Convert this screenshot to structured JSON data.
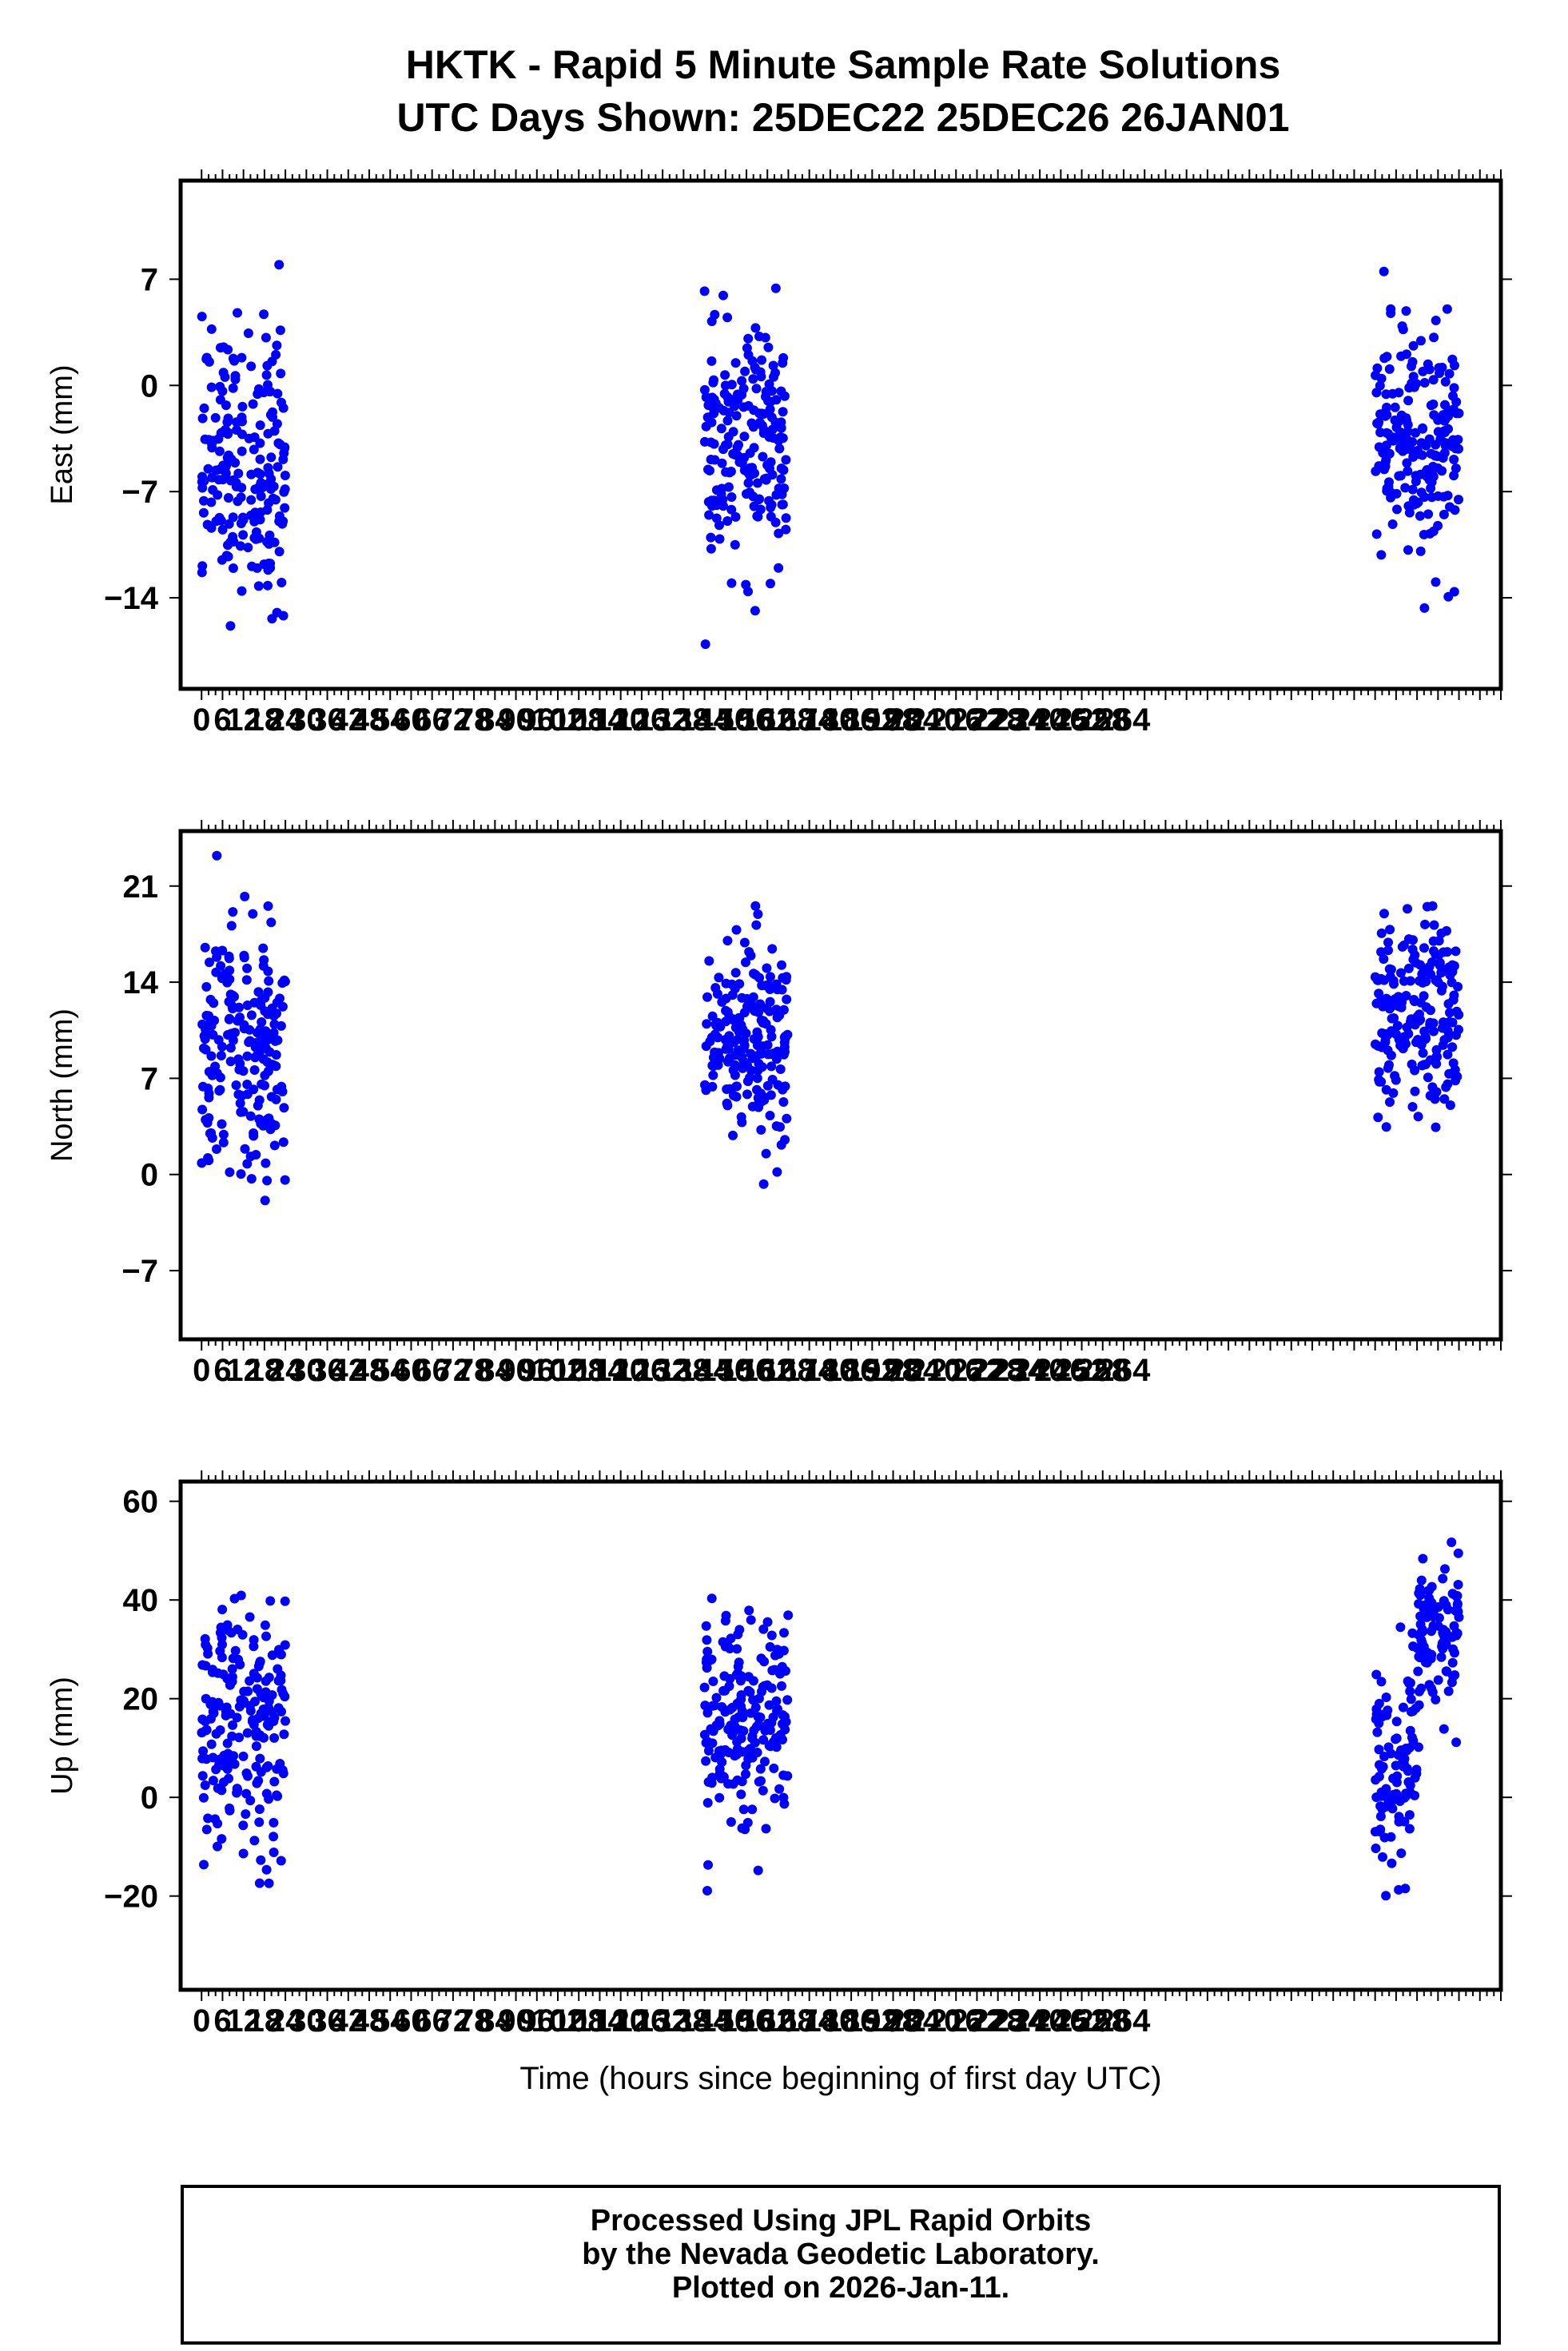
{
  "title": {
    "line1": "HKTK - Rapid 5 Minute Sample Rate Solutions",
    "line2": "UTC Days Shown:  25DEC22 25DEC26 26JAN01"
  },
  "footer": {
    "line1": "Processed Using JPL Rapid Orbits",
    "line2": "by the Nevada Geodetic Laboratory.",
    "line3": "Plotted on 2026-Jan-11."
  },
  "colors": {
    "points": "#0000ff",
    "axes": "#000000",
    "background": "#ffffff"
  },
  "chart_data": [
    {
      "type": "scatter",
      "title": "",
      "ylabel": "East (mm)",
      "xlabel": "",
      "xlim": [
        -6,
        372
      ],
      "ylim": [
        -20,
        13.5
      ],
      "yticks": [
        -14,
        -7,
        0,
        7
      ],
      "xticks": [
        0,
        6,
        12,
        18,
        24,
        30,
        36,
        42,
        48,
        54,
        60,
        66,
        72,
        78,
        84,
        90,
        96,
        102,
        108,
        114,
        120,
        126,
        132,
        138,
        144,
        150,
        156,
        162,
        168,
        174,
        180,
        186,
        192,
        198,
        204,
        210,
        216,
        222,
        228,
        234,
        240,
        246,
        252,
        258,
        264
      ],
      "clusters": [
        {
          "x_range": [
            0,
            24
          ],
          "y_center": -5,
          "y_spread": 6
        },
        {
          "x_range": [
            144,
            168
          ],
          "y_center": -4,
          "y_spread": 5
        },
        {
          "x_range": [
            336,
            360
          ],
          "y_center": -4,
          "y_spread": 5
        }
      ],
      "grid": false
    },
    {
      "type": "scatter",
      "title": "",
      "ylabel": "North (mm)",
      "xlabel": "",
      "xlim": [
        -6,
        372
      ],
      "ylim": [
        -12,
        25
      ],
      "yticks": [
        -7,
        0,
        7,
        14,
        21
      ],
      "xticks": [
        0,
        6,
        12,
        18,
        24,
        30,
        36,
        42,
        48,
        54,
        60,
        66,
        72,
        78,
        84,
        90,
        96,
        102,
        108,
        114,
        120,
        126,
        132,
        138,
        144,
        150,
        156,
        162,
        168,
        174,
        180,
        186,
        192,
        198,
        204,
        210,
        216,
        222,
        228,
        234,
        240,
        246,
        252,
        258,
        264
      ],
      "clusters": [
        {
          "x_range": [
            0,
            24
          ],
          "y_center": 9,
          "y_spread": 6
        },
        {
          "x_range": [
            144,
            168
          ],
          "y_center": 10,
          "y_spread": 5
        },
        {
          "x_range": [
            336,
            360
          ],
          "y_center": 11,
          "y_spread": 5
        }
      ],
      "grid": false
    },
    {
      "type": "scatter",
      "title": "",
      "ylabel": "Up (mm)",
      "xlabel": "Time (hours since beginning of first day UTC)",
      "xlim": [
        -6,
        372
      ],
      "ylim": [
        -39,
        64
      ],
      "yticks": [
        -20,
        0,
        20,
        40,
        60
      ],
      "xticks": [
        0,
        6,
        12,
        18,
        24,
        30,
        36,
        42,
        48,
        54,
        60,
        66,
        72,
        78,
        84,
        90,
        96,
        102,
        108,
        114,
        120,
        126,
        132,
        138,
        144,
        150,
        156,
        162,
        168,
        174,
        180,
        186,
        192,
        198,
        204,
        210,
        216,
        222,
        228,
        234,
        240,
        246,
        252,
        258,
        264
      ],
      "clusters": [
        {
          "x_range": [
            0,
            24
          ],
          "y_center": 14,
          "y_spread": 16
        },
        {
          "x_range": [
            144,
            168
          ],
          "y_center": 16,
          "y_spread": 14
        },
        {
          "x_range": [
            336,
            348
          ],
          "y_center": 6,
          "y_spread": 14
        },
        {
          "x_range": [
            348,
            360
          ],
          "y_center": 32,
          "y_spread": 12
        }
      ],
      "grid": false
    }
  ]
}
